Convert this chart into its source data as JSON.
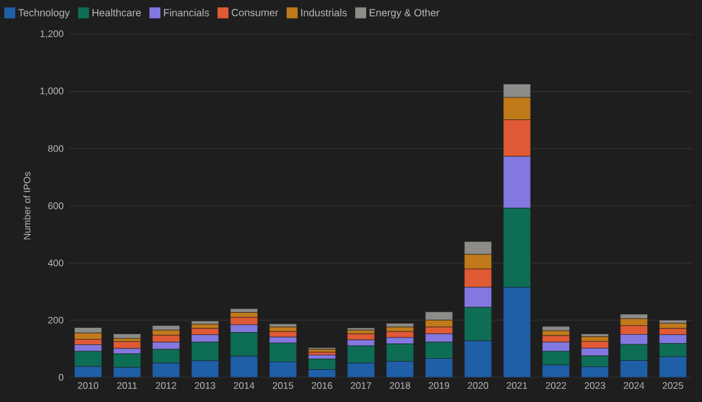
{
  "chart_data": {
    "type": "bar",
    "stacked": true,
    "ylabel": "Number of IPOs",
    "categories": [
      "2010",
      "2011",
      "2012",
      "2013",
      "2014",
      "2015",
      "2016",
      "2017",
      "2018",
      "2019",
      "2020",
      "2021",
      "2022",
      "2023",
      "2024",
      "2025"
    ],
    "series": [
      {
        "name": "Technology",
        "color": "#1f5fa8",
        "values": [
          38,
          35,
          50,
          58,
          74,
          54,
          27,
          50,
          56,
          66,
          128,
          315,
          43,
          37,
          59,
          72
        ]
      },
      {
        "name": "Healthcare",
        "color": "#0e6e55",
        "values": [
          53,
          47,
          48,
          65,
          83,
          66,
          37,
          60,
          61,
          57,
          117,
          277,
          48,
          38,
          56,
          46
        ]
      },
      {
        "name": "Financials",
        "color": "#8378e0",
        "values": [
          23,
          19,
          25,
          26,
          27,
          21,
          14,
          21,
          22,
          29,
          70,
          181,
          32,
          27,
          35,
          31
        ]
      },
      {
        "name": "Consumer",
        "color": "#e05a35",
        "values": [
          19,
          24,
          24,
          22,
          26,
          19,
          10,
          21,
          21,
          24,
          64,
          128,
          23,
          24,
          31,
          22
        ]
      },
      {
        "name": "Industrials",
        "color": "#c07a1a",
        "values": [
          22,
          11,
          18,
          15,
          17,
          16,
          10,
          13,
          16,
          24,
          51,
          78,
          17,
          16,
          24,
          18
        ]
      },
      {
        "name": "Energy & Other",
        "color": "#8c8c88",
        "values": [
          19,
          16,
          16,
          11,
          13,
          11,
          6,
          8,
          13,
          29,
          45,
          47,
          15,
          10,
          16,
          11
        ]
      }
    ],
    "ylim": [
      0,
      1200
    ],
    "yticks": [
      0,
      200,
      400,
      600,
      800,
      {
        "value": 1000,
        "label": "1,000"
      },
      {
        "value": 1200,
        "label": "1,200"
      }
    ],
    "grid": "y",
    "legend": "top left"
  }
}
